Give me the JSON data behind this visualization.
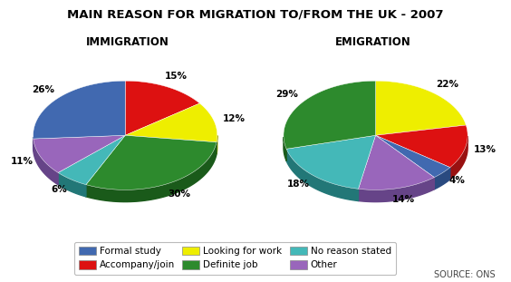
{
  "title": "MAIN REASON FOR MIGRATION TO/FROM THE UK - 2007",
  "immigration_label": "IMMIGRATION",
  "emigration_label": "EMIGRATION",
  "categories": [
    "Formal study",
    "Accompany/join",
    "Looking for work",
    "Definite job",
    "No reason stated",
    "Other"
  ],
  "colors": [
    "#4169b0",
    "#dd1111",
    "#eeee00",
    "#2d8a2d",
    "#44b8b8",
    "#9966bb"
  ],
  "dark_colors": [
    "#2a4a80",
    "#991111",
    "#aaaa00",
    "#1a5a1a",
    "#227777",
    "#664488"
  ],
  "immigration_values": [
    26,
    15,
    12,
    30,
    6,
    11
  ],
  "emigration_values": [
    4,
    13,
    22,
    29,
    18,
    14
  ],
  "immigration_labels": [
    "26%",
    "15%",
    "12%",
    "30%",
    "6%",
    "11%"
  ],
  "emigration_labels": [
    "4%",
    "13%",
    "22%",
    "29%",
    "18%",
    "14%"
  ],
  "source_text": "SOURCE: ONS",
  "background_color": "#ffffff",
  "title_fontsize": 9.5,
  "subtitle_fontsize": 8.5,
  "label_fontsize": 7.5,
  "legend_fontsize": 7.5
}
